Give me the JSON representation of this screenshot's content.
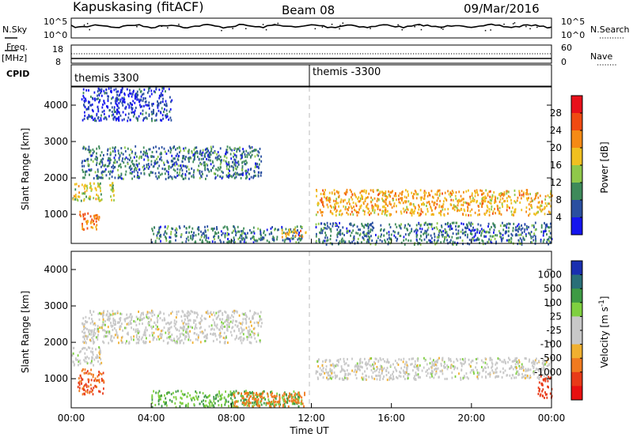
{
  "header": {
    "title": "Kapuskasing (fitACF)",
    "beam": "Beam 08",
    "date": "09/Mar/2016"
  },
  "noise_panel": {
    "left_label": "N.Sky",
    "right_label": "N.Search",
    "left_ticks": [
      "10^5",
      "10^0"
    ],
    "right_ticks": [
      "10^5",
      "10^0"
    ]
  },
  "freq_panel": {
    "left_label_1": "Freq.",
    "left_label_2": "[MHz]",
    "cpid_label": "CPID",
    "right_label": "Nave",
    "left_ticks": [
      "18",
      "8"
    ],
    "right_ticks": [
      "60",
      "0"
    ]
  },
  "cpid_labels": [
    "themis 3300",
    "themis -3300"
  ],
  "colorbars": {
    "power": {
      "label": "Power [dB]",
      "ticks": [
        "28",
        "24",
        "20",
        "16",
        "12",
        "8",
        "4"
      ],
      "colors": [
        "#e8101a",
        "#f04a12",
        "#f58a14",
        "#f0c020",
        "#8fc84a",
        "#3e8a5a",
        "#2a4fa0",
        "#1414ee"
      ]
    },
    "velocity": {
      "label": "Velocity [m s",
      "label_sup": "-1",
      "label_end": "]",
      "ticks": [
        "1000",
        "500",
        "100",
        "25",
        "-25",
        "-100",
        "-500",
        "-1000"
      ],
      "colors": [
        "#1a2fb0",
        "#2a6f78",
        "#3e9a44",
        "#7fd040",
        "#c8c8c8",
        "#c8c8c8",
        "#f0b030",
        "#f07a20",
        "#e83a18",
        "#e81010"
      ]
    }
  },
  "chart_data": [
    {
      "type": "heatmap",
      "name": "power",
      "ylabel": "Slant Range [km]",
      "xlim": [
        "00:00",
        "24:00"
      ],
      "ylim": [
        200,
        4500
      ],
      "yticks": [
        "1000",
        "2000",
        "3000",
        "4000"
      ],
      "xticks": [],
      "features": [
        {
          "start_h": 0.0,
          "end_h": 1.5,
          "range_lo": 1400,
          "range_hi": 1900,
          "power_db": 16
        },
        {
          "start_h": 0.4,
          "end_h": 1.4,
          "range_lo": 600,
          "range_hi": 1100,
          "power_db": 24
        },
        {
          "start_h": 1.9,
          "end_h": 2.1,
          "range_lo": 1400,
          "range_hi": 1900,
          "power_db": 16
        },
        {
          "start_h": 0.5,
          "end_h": 9.5,
          "range_lo": 2000,
          "range_hi": 2900,
          "power_db": 8
        },
        {
          "start_h": 0.5,
          "end_h": 5.0,
          "range_lo": 3600,
          "range_hi": 4500,
          "power_db": 4
        },
        {
          "start_h": 4.0,
          "end_h": 11.5,
          "range_lo": 250,
          "range_hi": 700,
          "power_db": 8
        },
        {
          "start_h": 10.5,
          "end_h": 11.7,
          "range_lo": 400,
          "range_hi": 650,
          "power_db": 20
        },
        {
          "start_h": 12.2,
          "end_h": 24.0,
          "range_lo": 1000,
          "range_hi": 1700,
          "power_db": 20
        },
        {
          "start_h": 12.2,
          "end_h": 24.0,
          "range_lo": 200,
          "range_hi": 800,
          "power_db": 8
        }
      ]
    },
    {
      "type": "heatmap",
      "name": "velocity",
      "ylabel": "Slant Range [km]",
      "xlabel": "Time UT",
      "xlim": [
        "00:00",
        "24:00"
      ],
      "ylim": [
        200,
        4500
      ],
      "yticks": [
        "1000",
        "2000",
        "3000",
        "4000"
      ],
      "xticks": [
        "00:00",
        "04:00",
        "08:00",
        "12:00",
        "16:00",
        "20:00",
        "00:00"
      ],
      "features": [
        {
          "start_h": 0.0,
          "end_h": 1.5,
          "range_lo": 1400,
          "range_hi": 1900,
          "velocity": 0
        },
        {
          "start_h": 0.3,
          "end_h": 1.6,
          "range_lo": 600,
          "range_hi": 1300,
          "velocity": -300
        },
        {
          "start_h": 0.5,
          "end_h": 9.5,
          "range_lo": 2000,
          "range_hi": 2900,
          "velocity": 0
        },
        {
          "start_h": 4.0,
          "end_h": 11.5,
          "range_lo": 250,
          "range_hi": 700,
          "velocity": 60
        },
        {
          "start_h": 8.0,
          "end_h": 11.7,
          "range_lo": 250,
          "range_hi": 650,
          "velocity": -150
        },
        {
          "start_h": 12.2,
          "end_h": 24.0,
          "range_lo": 1000,
          "range_hi": 1600,
          "velocity": 0
        },
        {
          "start_h": 23.3,
          "end_h": 24.0,
          "range_lo": 500,
          "range_hi": 1100,
          "velocity": -400
        }
      ]
    }
  ]
}
